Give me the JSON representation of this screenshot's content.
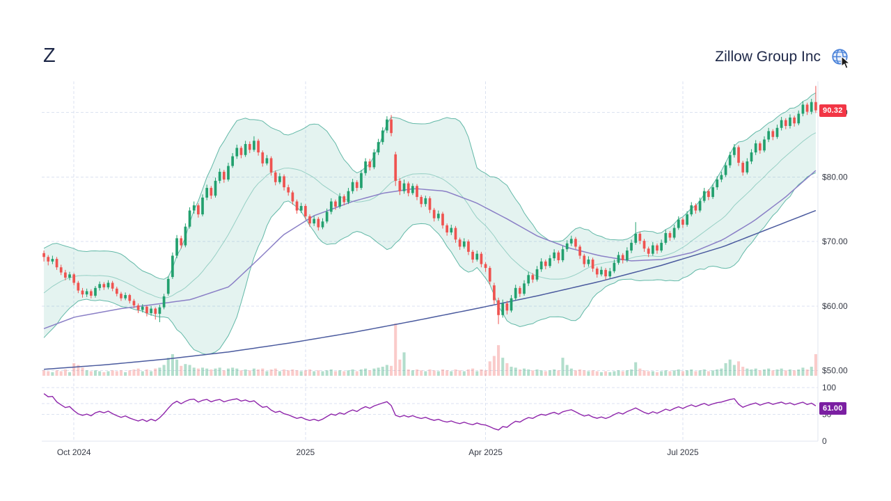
{
  "header": {
    "symbol": "Z",
    "company_name": "Zillow Group Inc"
  },
  "colors": {
    "grid": "#dbe2f0",
    "axis_text": "#363a45",
    "axis_line": "#e2e6ef",
    "band_stroke": "#49ad99",
    "band_fill": "rgba(73,173,153,0.15)",
    "candle_up": "#22a06e",
    "candle_down": "#ef5350",
    "vol_up": "rgba(34,160,110,0.35)",
    "vol_down": "rgba(239,83,80,0.30)",
    "ma50": "#8a7fc6",
    "ma200": "#4a5a9e",
    "rsi_line": "#8e24aa",
    "rsi_badge": "#7b1fa2",
    "price_badge": "#f23645",
    "globe_blue": "#4a82d9"
  },
  "chart_data": {
    "type": "candlestick",
    "symbol": "Z",
    "title": "Zillow Group Inc",
    "last_price": 90.32,
    "last_price_label": "90.32",
    "price_axis": {
      "min": 49.2,
      "max": 94.8,
      "ticks": [
        {
          "value": 50,
          "label": "$50.00"
        },
        {
          "value": 60,
          "label": "$60.00"
        },
        {
          "value": 70,
          "label": "$70.00"
        },
        {
          "value": 80,
          "label": "$80.00"
        },
        {
          "value": 90,
          "label": "$90.00"
        }
      ]
    },
    "x_ticks": [
      {
        "index": 7,
        "label": "Oct 2024"
      },
      {
        "index": 61,
        "label": "2025"
      },
      {
        "index": 103,
        "label": "Apr 2025"
      },
      {
        "index": 149,
        "label": "Jul 2025"
      }
    ],
    "ohlc_format": [
      "open",
      "high",
      "low",
      "close",
      "volume"
    ],
    "seed_closes": [
      56.5,
      57.2,
      58.0,
      57.4,
      58.8,
      59.5,
      60.3,
      59.8,
      61.0,
      61.8,
      62.5,
      63.2,
      62.6,
      63.9,
      64.7,
      65.5,
      66.2,
      66.8,
      67.2
    ],
    "candles": [
      [
        68.2,
        68.6,
        66.9,
        67.6,
        6
      ],
      [
        67.6,
        67.9,
        66.3,
        66.9,
        5
      ],
      [
        66.9,
        67.8,
        66.5,
        67.3,
        4
      ],
      [
        67.3,
        67.6,
        65.6,
        66.0,
        6
      ],
      [
        66.0,
        66.4,
        64.8,
        65.2,
        5
      ],
      [
        65.2,
        65.6,
        64.0,
        64.4,
        7
      ],
      [
        64.4,
        65.3,
        64.0,
        64.9,
        4
      ],
      [
        64.9,
        65.1,
        63.2,
        63.6,
        14
      ],
      [
        63.6,
        63.9,
        62.0,
        62.4,
        12
      ],
      [
        62.4,
        62.8,
        61.3,
        61.8,
        9
      ],
      [
        61.8,
        62.7,
        61.4,
        62.3,
        6
      ],
      [
        62.3,
        62.6,
        61.2,
        61.6,
        5
      ],
      [
        61.6,
        63.1,
        61.3,
        62.8,
        6
      ],
      [
        62.8,
        63.8,
        62.4,
        63.4,
        5
      ],
      [
        63.4,
        63.7,
        62.5,
        62.9,
        4
      ],
      [
        62.9,
        64.0,
        62.6,
        63.6,
        5
      ],
      [
        63.6,
        63.9,
        62.3,
        62.7,
        6
      ],
      [
        62.7,
        63.0,
        61.5,
        61.9,
        5
      ],
      [
        61.9,
        62.2,
        60.8,
        61.2,
        6
      ],
      [
        61.2,
        62.1,
        60.9,
        61.7,
        4
      ],
      [
        61.7,
        61.9,
        60.4,
        60.8,
        6
      ],
      [
        60.8,
        61.1,
        59.7,
        60.1,
        7
      ],
      [
        60.1,
        60.4,
        58.9,
        59.4,
        8
      ],
      [
        59.4,
        60.3,
        59.0,
        59.9,
        5
      ],
      [
        59.9,
        60.1,
        58.4,
        58.9,
        7
      ],
      [
        58.9,
        60.0,
        58.5,
        59.6,
        5
      ],
      [
        59.6,
        59.8,
        57.9,
        58.8,
        8
      ],
      [
        58.8,
        60.2,
        57.5,
        59.8,
        9
      ],
      [
        59.8,
        61.9,
        59.5,
        61.5,
        12
      ],
      [
        61.9,
        64.6,
        61.6,
        64.2,
        20
      ],
      [
        64.5,
        68.3,
        64.2,
        67.8,
        24
      ],
      [
        67.8,
        71.0,
        67.4,
        70.5,
        18
      ],
      [
        70.5,
        70.9,
        68.9,
        69.4,
        11
      ],
      [
        69.4,
        72.8,
        69.1,
        72.3,
        13
      ],
      [
        72.3,
        75.3,
        72.0,
        74.8,
        12
      ],
      [
        74.8,
        76.2,
        74.3,
        75.6,
        9
      ],
      [
        75.6,
        75.9,
        73.7,
        74.2,
        8
      ],
      [
        74.2,
        77.3,
        73.9,
        76.8,
        9
      ],
      [
        76.8,
        78.8,
        76.4,
        78.3,
        8
      ],
      [
        78.3,
        78.6,
        76.6,
        77.1,
        7
      ],
      [
        77.1,
        79.9,
        76.8,
        79.4,
        8
      ],
      [
        79.4,
        81.3,
        79.0,
        80.8,
        9
      ],
      [
        80.8,
        81.1,
        79.1,
        79.6,
        6
      ],
      [
        79.6,
        82.2,
        79.3,
        81.7,
        8
      ],
      [
        81.7,
        83.7,
        81.4,
        83.2,
        9
      ],
      [
        83.2,
        85.0,
        82.8,
        84.5,
        8
      ],
      [
        84.5,
        84.8,
        82.9,
        83.4,
        6
      ],
      [
        83.4,
        85.6,
        83.1,
        85.1,
        7
      ],
      [
        85.1,
        85.5,
        83.7,
        84.2,
        6
      ],
      [
        84.2,
        86.3,
        83.9,
        85.6,
        8
      ],
      [
        85.6,
        85.9,
        83.3,
        83.8,
        7
      ],
      [
        83.8,
        84.1,
        81.6,
        82.1,
        8
      ],
      [
        82.1,
        83.4,
        81.8,
        82.9,
        5
      ],
      [
        82.9,
        83.2,
        80.2,
        80.7,
        7
      ],
      [
        80.7,
        81.0,
        78.7,
        79.2,
        8
      ],
      [
        79.2,
        80.6,
        78.9,
        80.1,
        5
      ],
      [
        80.1,
        80.4,
        77.9,
        78.4,
        7
      ],
      [
        78.4,
        78.8,
        77.1,
        77.6,
        6
      ],
      [
        77.6,
        77.9,
        75.7,
        76.2,
        7
      ],
      [
        76.2,
        76.5,
        74.3,
        74.8,
        6
      ],
      [
        74.8,
        76.0,
        74.4,
        75.5,
        5
      ],
      [
        75.5,
        75.8,
        73.4,
        73.9,
        6
      ],
      [
        73.9,
        74.2,
        72.3,
        72.8,
        7
      ],
      [
        72.8,
        74.0,
        72.4,
        73.5,
        5
      ],
      [
        73.5,
        73.8,
        71.7,
        72.2,
        6
      ],
      [
        72.2,
        73.6,
        71.9,
        73.1,
        5
      ],
      [
        73.1,
        75.1,
        72.8,
        74.6,
        6
      ],
      [
        74.6,
        76.7,
        74.2,
        76.2,
        7
      ],
      [
        76.2,
        76.5,
        74.9,
        75.4,
        5
      ],
      [
        75.4,
        77.5,
        75.1,
        77.0,
        6
      ],
      [
        77.0,
        77.3,
        75.6,
        76.1,
        5
      ],
      [
        76.1,
        78.3,
        75.8,
        77.8,
        6
      ],
      [
        77.8,
        79.7,
        77.4,
        79.2,
        7
      ],
      [
        79.2,
        79.5,
        77.8,
        78.3,
        5
      ],
      [
        78.3,
        81.1,
        78.0,
        80.6,
        7
      ],
      [
        80.6,
        82.9,
        80.2,
        82.4,
        8
      ],
      [
        82.4,
        82.8,
        81.0,
        81.5,
        6
      ],
      [
        81.5,
        84.3,
        81.2,
        83.8,
        8
      ],
      [
        83.8,
        85.9,
        83.4,
        85.4,
        9
      ],
      [
        85.4,
        87.7,
        85.0,
        87.2,
        10
      ],
      [
        87.2,
        89.4,
        86.8,
        88.9,
        12
      ],
      [
        88.9,
        89.6,
        86.3,
        86.8,
        11
      ],
      [
        83.5,
        83.9,
        78.6,
        79.4,
        58
      ],
      [
        79.4,
        79.8,
        77.2,
        77.8,
        18
      ],
      [
        77.8,
        79.6,
        77.4,
        79.0,
        26
      ],
      [
        79.0,
        79.3,
        77.0,
        77.5,
        7
      ],
      [
        77.5,
        79.0,
        77.2,
        78.6,
        6
      ],
      [
        78.6,
        78.9,
        76.4,
        76.9,
        7
      ],
      [
        76.9,
        77.2,
        75.3,
        75.8,
        6
      ],
      [
        75.8,
        77.1,
        75.4,
        76.7,
        5
      ],
      [
        76.7,
        77.0,
        74.4,
        74.9,
        7
      ],
      [
        74.9,
        75.2,
        73.1,
        73.6,
        6
      ],
      [
        73.6,
        74.8,
        73.2,
        74.3,
        5
      ],
      [
        74.3,
        74.6,
        72.0,
        72.5,
        7
      ],
      [
        72.5,
        72.8,
        70.9,
        71.4,
        6
      ],
      [
        71.4,
        72.6,
        71.0,
        72.1,
        5
      ],
      [
        72.1,
        72.4,
        69.8,
        70.3,
        7
      ],
      [
        70.3,
        70.6,
        68.7,
        69.2,
        6
      ],
      [
        69.2,
        70.5,
        68.9,
        70.0,
        5
      ],
      [
        70.0,
        70.3,
        67.9,
        68.4,
        7
      ],
      [
        68.4,
        68.7,
        66.7,
        67.2,
        8
      ],
      [
        67.2,
        68.6,
        66.9,
        68.1,
        5
      ],
      [
        68.1,
        68.4,
        66.0,
        66.5,
        7
      ],
      [
        66.5,
        66.8,
        65.3,
        65.9,
        6
      ],
      [
        65.9,
        66.2,
        63.3,
        63.8,
        16
      ],
      [
        63.2,
        63.6,
        60.3,
        60.9,
        22
      ],
      [
        60.9,
        61.3,
        57.2,
        58.6,
        34
      ],
      [
        58.6,
        61.0,
        58.2,
        60.4,
        20
      ],
      [
        60.4,
        60.8,
        58.7,
        59.3,
        14
      ],
      [
        59.3,
        61.7,
        59.0,
        61.2,
        10
      ],
      [
        61.2,
        63.3,
        60.9,
        62.8,
        9
      ],
      [
        62.8,
        63.1,
        61.4,
        61.9,
        7
      ],
      [
        61.9,
        64.0,
        61.6,
        63.5,
        8
      ],
      [
        63.5,
        65.3,
        63.1,
        64.8,
        7
      ],
      [
        64.8,
        65.1,
        63.6,
        64.1,
        6
      ],
      [
        64.1,
        66.2,
        63.8,
        65.7,
        7
      ],
      [
        65.7,
        67.4,
        65.3,
        66.9,
        6
      ],
      [
        66.9,
        67.2,
        65.7,
        66.2,
        5
      ],
      [
        66.2,
        67.9,
        65.9,
        67.4,
        6
      ],
      [
        67.4,
        68.8,
        67.0,
        68.3,
        7
      ],
      [
        68.3,
        68.6,
        66.6,
        67.1,
        6
      ],
      [
        67.1,
        69.3,
        66.8,
        68.8,
        20
      ],
      [
        68.8,
        70.2,
        68.4,
        69.7,
        12
      ],
      [
        69.7,
        70.9,
        69.3,
        70.4,
        8
      ],
      [
        70.4,
        70.7,
        68.8,
        69.2,
        6
      ],
      [
        69.2,
        69.5,
        67.3,
        67.8,
        7
      ],
      [
        67.8,
        68.1,
        66.0,
        66.5,
        6
      ],
      [
        66.5,
        67.7,
        66.1,
        67.2,
        5
      ],
      [
        67.2,
        67.5,
        65.3,
        65.8,
        6
      ],
      [
        65.8,
        66.1,
        64.4,
        64.9,
        5
      ],
      [
        64.9,
        66.1,
        64.6,
        65.6,
        4
      ],
      [
        65.6,
        65.9,
        64.1,
        64.6,
        5
      ],
      [
        64.6,
        65.9,
        64.3,
        65.4,
        4
      ],
      [
        65.4,
        67.2,
        65.1,
        66.7,
        5
      ],
      [
        66.7,
        68.4,
        66.4,
        67.9,
        6
      ],
      [
        67.9,
        68.2,
        66.6,
        67.1,
        5
      ],
      [
        67.1,
        69.1,
        66.8,
        68.6,
        6
      ],
      [
        68.6,
        70.3,
        68.2,
        69.8,
        7
      ],
      [
        69.8,
        73.0,
        69.5,
        71.2,
        15
      ],
      [
        71.2,
        71.5,
        69.6,
        70.1,
        8
      ],
      [
        70.1,
        70.4,
        68.4,
        68.9,
        6
      ],
      [
        68.9,
        69.2,
        67.6,
        68.1,
        5
      ],
      [
        68.1,
        69.9,
        67.8,
        69.4,
        5
      ],
      [
        69.4,
        69.7,
        68.1,
        68.6,
        4
      ],
      [
        68.6,
        70.3,
        68.3,
        69.8,
        5
      ],
      [
        69.8,
        71.8,
        69.5,
        71.3,
        6
      ],
      [
        71.3,
        71.6,
        70.1,
        70.6,
        5
      ],
      [
        70.6,
        72.6,
        70.3,
        72.1,
        6
      ],
      [
        72.1,
        73.9,
        71.8,
        73.4,
        7
      ],
      [
        73.4,
        73.7,
        72.1,
        72.6,
        5
      ],
      [
        72.6,
        74.7,
        72.3,
        74.2,
        6
      ],
      [
        74.2,
        76.1,
        73.9,
        75.6,
        7
      ],
      [
        75.6,
        75.9,
        74.3,
        74.8,
        5
      ],
      [
        74.8,
        76.8,
        74.5,
        76.3,
        6
      ],
      [
        76.3,
        78.3,
        76.0,
        77.8,
        7
      ],
      [
        77.8,
        78.1,
        76.4,
        76.9,
        5
      ],
      [
        76.9,
        78.9,
        76.6,
        78.4,
        6
      ],
      [
        78.4,
        80.1,
        78.0,
        79.6,
        7
      ],
      [
        79.6,
        80.8,
        79.2,
        80.3,
        8
      ],
      [
        80.3,
        82.3,
        80.0,
        81.8,
        14
      ],
      [
        81.8,
        83.9,
        81.4,
        83.4,
        18
      ],
      [
        83.4,
        85.1,
        83.0,
        84.6,
        12
      ],
      [
        84.6,
        84.9,
        81.7,
        82.2,
        16
      ],
      [
        82.2,
        82.5,
        80.2,
        80.7,
        10
      ],
      [
        80.7,
        82.9,
        80.4,
        82.4,
        8
      ],
      [
        82.4,
        84.3,
        82.0,
        83.8,
        7
      ],
      [
        83.8,
        85.7,
        83.4,
        85.2,
        8
      ],
      [
        85.2,
        85.5,
        83.6,
        84.1,
        6
      ],
      [
        84.1,
        86.3,
        83.8,
        85.8,
        7
      ],
      [
        85.8,
        87.6,
        85.4,
        87.1,
        8
      ],
      [
        87.1,
        87.4,
        85.7,
        86.2,
        6
      ],
      [
        86.2,
        88.1,
        85.9,
        87.6,
        7
      ],
      [
        87.6,
        89.3,
        87.2,
        88.8,
        8
      ],
      [
        88.8,
        89.1,
        87.4,
        87.9,
        6
      ],
      [
        87.9,
        89.7,
        87.5,
        89.2,
        7
      ],
      [
        89.2,
        89.5,
        87.8,
        88.3,
        6
      ],
      [
        88.3,
        90.3,
        88.0,
        89.8,
        7
      ],
      [
        89.8,
        91.7,
        89.4,
        91.2,
        9
      ],
      [
        91.2,
        91.5,
        89.6,
        90.1,
        7
      ],
      [
        90.1,
        92.1,
        89.7,
        91.6,
        10
      ],
      [
        91.6,
        94.1,
        89.9,
        90.32,
        24
      ]
    ],
    "overlays": {
      "bollinger": {
        "period": 20,
        "stdev": 2
      },
      "ma50_anchors": [
        [
          0,
          56.5
        ],
        [
          0.04,
          58.3
        ],
        [
          0.1,
          59.6
        ],
        [
          0.14,
          60.2
        ],
        [
          0.19,
          61.0
        ],
        [
          0.24,
          63.0
        ],
        [
          0.28,
          67.5
        ],
        [
          0.31,
          71.0
        ],
        [
          0.35,
          74.0
        ],
        [
          0.4,
          76.2
        ],
        [
          0.44,
          77.5
        ],
        [
          0.48,
          78.2
        ],
        [
          0.52,
          77.8
        ],
        [
          0.56,
          76.0
        ],
        [
          0.6,
          73.5
        ],
        [
          0.64,
          70.8
        ],
        [
          0.68,
          69.0
        ],
        [
          0.72,
          67.8
        ],
        [
          0.76,
          67.0
        ],
        [
          0.8,
          67.2
        ],
        [
          0.84,
          68.3
        ],
        [
          0.88,
          70.3
        ],
        [
          0.92,
          73.2
        ],
        [
          0.96,
          76.8
        ],
        [
          1,
          81.0
        ]
      ],
      "ma200_anchors": [
        [
          0,
          50.2
        ],
        [
          0.08,
          50.9
        ],
        [
          0.16,
          51.8
        ],
        [
          0.24,
          52.9
        ],
        [
          0.32,
          54.3
        ],
        [
          0.4,
          55.9
        ],
        [
          0.48,
          57.7
        ],
        [
          0.56,
          59.6
        ],
        [
          0.64,
          61.6
        ],
        [
          0.72,
          63.8
        ],
        [
          0.8,
          66.3
        ],
        [
          0.88,
          69.2
        ],
        [
          0.94,
          72.0
        ],
        [
          1,
          74.8
        ]
      ]
    },
    "rsi": {
      "period": 14,
      "value": 61.0,
      "value_label": "61.00",
      "ticks": [
        {
          "value": 100,
          "label": "100"
        },
        {
          "value": 50,
          "label": "50"
        },
        {
          "value": 0,
          "label": "0"
        }
      ],
      "guide_levels": [
        100,
        70,
        50
      ]
    }
  }
}
